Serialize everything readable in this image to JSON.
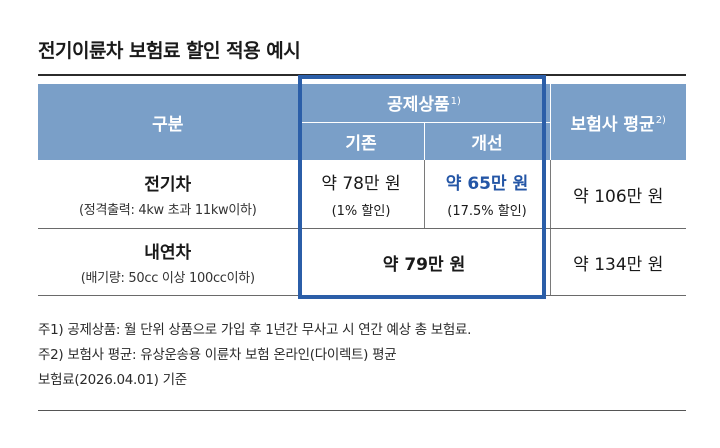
{
  "title": "전기이륜차 보험료 할인 적용 예시",
  "table": {
    "header": {
      "category": "구분",
      "mutual_product": "공제상품",
      "mutual_product_mark": "1)",
      "existing": "기존",
      "improved": "개선",
      "insurer_avg": "보험사 평균",
      "insurer_avg_mark": "2)"
    },
    "rows": [
      {
        "name": "전기차",
        "spec": "(정격출력: 4kw 초과 11kw이하)",
        "existing_price": "약 78만 원",
        "existing_discount": "(1% 할인)",
        "improved_price": "약 65만 원",
        "improved_discount": "(17.5% 할인)",
        "insurer_avg": "약 106만 원"
      },
      {
        "name": "내연차",
        "spec": "(배기량: 50cc 이상 100cc이하)",
        "mutual_price": "약 79만 원",
        "insurer_avg": "약 134만 원"
      }
    ]
  },
  "notes": [
    "주1) 공제상품: 월 단위 상품으로 가입 후 1년간 무사고 시 연간 예상 총 보험료.",
    "주2) 보험사 평균: 유상운송용 이륜차 보험 온라인(다이렉트) 평균",
    "보험료(2026.04.01) 기준"
  ],
  "colors": {
    "header_bg": "#7a9fc8",
    "highlight_box": "#2b5ea8",
    "improved_text": "#2456a6"
  }
}
